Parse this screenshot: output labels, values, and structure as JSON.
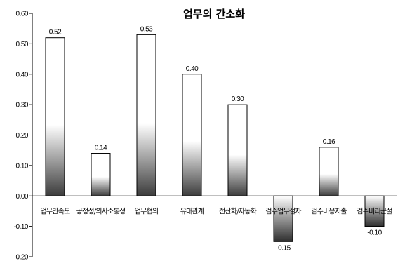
{
  "chart_data": {
    "type": "bar",
    "title": "업무의 간소화",
    "categories": [
      "업무만족도",
      "공정성/의사소통성",
      "업무협의",
      "유대관계",
      "전산화/자동화",
      "검수업무절차",
      "검수비용지출",
      "검수비리근절"
    ],
    "values": [
      0.52,
      0.14,
      0.53,
      0.4,
      0.3,
      -0.15,
      0.16,
      -0.1
    ],
    "data_labels": [
      "0.52",
      "0.14",
      "0.53",
      "0.40",
      "0.30",
      "-0.15",
      "0.16",
      "-0.10"
    ],
    "ylim": [
      -0.2,
      0.6
    ],
    "yticks": [
      "0.60",
      "0.50",
      "0.40",
      "0.30",
      "0.20",
      "0.10",
      "0.00",
      "-0.10",
      "-0.20"
    ],
    "xlabel": "",
    "ylabel": "",
    "grid": false,
    "legend": "none",
    "colors": {
      "bar_fill_top": "#ffffff",
      "bar_fill_bottom": "#3c3c3c",
      "bar_stroke": "#000000"
    }
  }
}
